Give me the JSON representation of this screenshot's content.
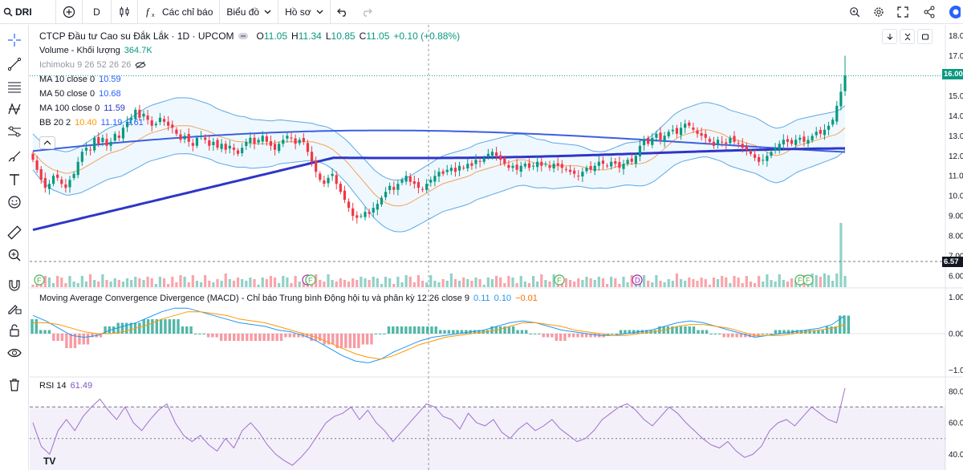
{
  "toolbar": {
    "symbol": "DRI",
    "interval": "D",
    "indicators": "Các chỉ báo",
    "chart_type": "Biểu đồ",
    "profile": "Hồ sơ"
  },
  "legend": {
    "title": "CTCP Đầu tư Cao su Đắk Lắk · 1D · UPCOM",
    "open_label": "O",
    "open": "11.05",
    "high_label": "H",
    "high": "11.34",
    "low_label": "L",
    "low": "10.85",
    "close_label": "C",
    "close": "11.05",
    "change": "+0.10 (+0.88%)",
    "volume_label": "Volume - Khối lượng",
    "volume_value": "364.7K",
    "ichimoku_label": "Ichimoku 9 26 52 26 26",
    "ma10_label": "MA 10 close 0",
    "ma10_value": "10.59",
    "ma50_label": "MA 50 close 0",
    "ma50_value": "10.68",
    "ma100_label": "MA 100 close 0",
    "ma100_value": "11.59",
    "bb_label": "BB 20 2",
    "bb_basis": "10.40",
    "bb_upper": "11.19",
    "bb_lower": "9.61"
  },
  "macd": {
    "label": "Moving Average Convergence Divergence (MACD) - Chỉ báo Trung bình Động hội tụ và phân kỳ 12 26 close 9",
    "v1": "0.11",
    "v2": "0.10",
    "v3": "−0.01"
  },
  "rsi": {
    "label": "RSI 14",
    "value": "61.49"
  },
  "price_tag": "16.00",
  "volume_tag": "6.57",
  "logo": "TV",
  "colors": {
    "up": "#089981",
    "down": "#f23645",
    "bb": "#2962ff",
    "ma10": "#f7a15a",
    "ma50": "#5b9cf6",
    "ma100": "#2e36c8",
    "rsi": "#a06fd0",
    "macd": "#2196f3",
    "signal": "#ff9800"
  },
  "chart_data": [
    {
      "type": "line",
      "name": "price",
      "y_axis_ticks": [
        "18.00",
        "17.00",
        "16.00",
        "15.00",
        "14.00",
        "13.00",
        "12.00",
        "11.00",
        "10.00",
        "9.00",
        "8.00",
        "7.00",
        "6.00"
      ],
      "ylim": [
        5.6,
        18.1
      ],
      "close": [
        11.8,
        11.3,
        10.8,
        10.4,
        10.6,
        11.0,
        10.9,
        10.6,
        10.4,
        10.8,
        11.1,
        11.7,
        12.2,
        12.4,
        12.3,
        12.9,
        12.6,
        12.9,
        12.5,
        12.7,
        13.1,
        12.9,
        13.4,
        13.7,
        13.9,
        14.3,
        13.9,
        14.1,
        13.8,
        13.5,
        13.6,
        13.9,
        13.7,
        13.5,
        13.4,
        13.1,
        12.8,
        13.0,
        12.7,
        12.5,
        12.9,
        13.0,
        12.8,
        12.5,
        12.7,
        12.4,
        12.6,
        12.3,
        12.5,
        12.3,
        12.1,
        12.4,
        12.7,
        12.9,
        12.6,
        12.8,
        13.0,
        12.7,
        12.5,
        12.3,
        12.6,
        12.8,
        13.0,
        12.9,
        12.6,
        12.8,
        12.7,
        12.2,
        11.7,
        11.2,
        10.8,
        10.6,
        10.9,
        11.1,
        10.6,
        10.2,
        9.8,
        9.4,
        9.0,
        8.9,
        9.0,
        9.2,
        9.1,
        9.4,
        9.6,
        9.9,
        10.2,
        10.5,
        10.3,
        10.6,
        10.8,
        11.0,
        10.7,
        10.6,
        10.4,
        10.3,
        10.6,
        10.8,
        11.0,
        11.2,
        11.1,
        11.3,
        11.4,
        11.2,
        11.5,
        11.4,
        11.6,
        11.5,
        11.8,
        11.7,
        11.9,
        12.1,
        12.2,
        12.0,
        11.8,
        11.6,
        11.4,
        11.5,
        11.3,
        11.5,
        11.6,
        11.4,
        11.5,
        11.7,
        11.5,
        11.6,
        11.4,
        11.6,
        11.5,
        11.4,
        11.3,
        11.2,
        11.1,
        11.0,
        11.2,
        11.4,
        11.3,
        11.5,
        11.7,
        11.6,
        11.5,
        11.7,
        11.6,
        11.4,
        11.6,
        11.8,
        11.7,
        12.0,
        12.5,
        12.8,
        12.6,
        12.9,
        13.1,
        12.8,
        13.0,
        13.2,
        13.3,
        13.1,
        13.4,
        13.6,
        13.5,
        13.3,
        13.1,
        13.0,
        12.9,
        12.7,
        12.5,
        12.8,
        12.7,
        12.6,
        12.9,
        12.7,
        12.6,
        12.4,
        12.3,
        12.1,
        11.9,
        11.7,
        11.8,
        12.0,
        12.2,
        12.4,
        12.6,
        12.8,
        12.7,
        12.6,
        12.8,
        12.9,
        12.7,
        12.8,
        13.0,
        13.2,
        13.1,
        13.3,
        13.5,
        13.8,
        14.5,
        15.2,
        16.0
      ],
      "ma10": [
        12.2,
        11.8,
        11.5,
        11.3,
        11.2,
        11.1,
        11.2,
        11.3,
        11.5,
        11.7,
        11.9,
        12.1,
        12.2,
        12.3,
        12.5,
        12.7,
        12.9,
        13.1,
        13.2,
        13.3,
        13.4,
        13.5,
        13.5,
        13.5,
        13.4,
        13.3,
        13.2,
        13.0,
        12.9,
        12.8,
        12.7,
        12.7,
        12.6,
        12.6,
        12.6,
        12.6,
        12.7,
        12.7,
        12.7,
        12.7,
        12.7,
        12.7,
        12.6,
        12.5,
        12.3,
        12.0,
        11.7,
        11.3,
        10.9,
        10.5,
        10.1,
        9.8,
        9.6,
        9.5,
        9.5,
        9.6,
        9.8,
        10.0,
        10.2,
        10.4,
        10.6,
        10.7,
        10.8,
        10.9,
        11.0,
        11.2,
        11.3,
        11.4,
        11.5,
        11.6,
        11.7,
        11.8,
        11.8,
        11.7,
        11.6,
        11.6,
        11.5,
        11.5,
        11.5,
        11.5,
        11.5,
        11.4,
        11.3,
        11.3,
        11.3,
        11.4,
        11.5,
        11.6,
        11.6,
        11.6,
        11.7,
        11.9,
        12.2,
        12.5,
        12.8,
        13.0,
        13.1,
        13.2,
        13.3,
        13.3,
        13.2,
        13.1,
        12.9,
        12.8,
        12.7,
        12.6,
        12.5,
        12.3,
        12.1,
        12.0,
        12.1,
        12.3,
        12.5,
        12.6,
        12.7,
        12.8,
        12.9,
        13.0,
        13.1,
        13.4
      ]
    },
    {
      "type": "bar",
      "name": "Volume - Khối lượng",
      "note": "volume histogram in lower price pane"
    },
    {
      "type": "bar",
      "name": "MACD",
      "y_axis_ticks": [
        "1.00",
        "0.00",
        "−1.00"
      ],
      "ylim": [
        -1.1,
        1.1
      ],
      "macd": [
        0.5,
        0.35,
        0.15,
        -0.05,
        -0.1,
        -0.05,
        0.1,
        0.2,
        0.3,
        0.45,
        0.6,
        0.7,
        0.7,
        0.6,
        0.5,
        0.4,
        0.3,
        0.25,
        0.2,
        0.1,
        0.05,
        -0.05,
        -0.2,
        -0.4,
        -0.6,
        -0.75,
        -0.8,
        -0.7,
        -0.5,
        -0.35,
        -0.2,
        -0.1,
        -0.05,
        0.0,
        0.05,
        0.1,
        0.2,
        0.3,
        0.35,
        0.3,
        0.2,
        0.1,
        0.05,
        0.0,
        -0.05,
        -0.05,
        0.0,
        0.05,
        0.1,
        0.2,
        0.3,
        0.35,
        0.3,
        0.2,
        0.1,
        0.0,
        -0.1,
        -0.05,
        0.0,
        0.05,
        0.1,
        0.15,
        0.25,
        0.5
      ],
      "signal": [
        0.3,
        0.3,
        0.25,
        0.15,
        0.05,
        0.0,
        0.0,
        0.05,
        0.15,
        0.25,
        0.4,
        0.5,
        0.6,
        0.6,
        0.55,
        0.5,
        0.4,
        0.35,
        0.3,
        0.2,
        0.1,
        0.0,
        -0.1,
        -0.25,
        -0.4,
        -0.55,
        -0.65,
        -0.7,
        -0.6,
        -0.45,
        -0.3,
        -0.2,
        -0.1,
        -0.05,
        0.0,
        0.05,
        0.1,
        0.2,
        0.3,
        0.3,
        0.25,
        0.2,
        0.1,
        0.05,
        0.0,
        -0.05,
        -0.05,
        0.0,
        0.05,
        0.1,
        0.2,
        0.25,
        0.25,
        0.2,
        0.15,
        0.05,
        -0.05,
        -0.05,
        -0.05,
        0.0,
        0.05,
        0.1,
        0.15,
        0.25
      ]
    },
    {
      "type": "line",
      "name": "RSI 14",
      "y_axis_ticks": [
        "80.00",
        "60.00",
        "40.00"
      ],
      "ylim": [
        30,
        86
      ],
      "bands": [
        30,
        70
      ],
      "values": [
        60,
        45,
        40,
        55,
        62,
        55,
        64,
        70,
        75,
        68,
        62,
        70,
        60,
        55,
        62,
        68,
        72,
        60,
        52,
        48,
        52,
        46,
        42,
        50,
        44,
        55,
        60,
        54,
        46,
        40,
        36,
        33,
        38,
        44,
        52,
        60,
        64,
        66,
        70,
        62,
        68,
        60,
        55,
        48,
        54,
        60,
        66,
        72,
        70,
        64,
        62,
        56,
        66,
        60,
        58,
        62,
        54,
        50,
        56,
        60,
        55,
        58,
        62,
        56,
        52,
        48,
        50,
        55,
        62,
        66,
        70,
        72,
        68,
        62,
        58,
        64,
        70,
        66,
        60,
        55,
        50,
        46,
        44,
        48,
        42,
        38,
        40,
        45,
        55,
        60,
        62,
        58,
        64,
        70,
        66,
        62,
        60,
        82
      ]
    }
  ]
}
